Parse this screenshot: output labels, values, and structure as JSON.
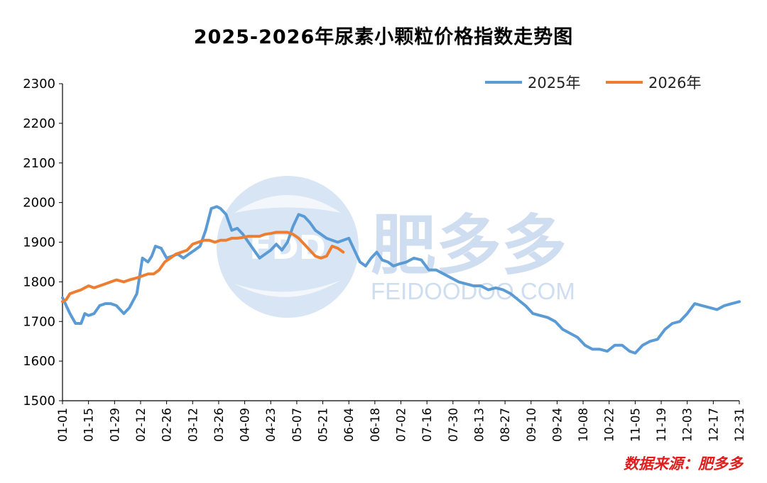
{
  "chart_data": {
    "type": "line",
    "title": "2025-2026年尿素小颗粒价格指数走势图",
    "xlabel": "",
    "ylabel": "",
    "ylim": [
      1500,
      2300
    ],
    "yticks": [
      1500,
      1600,
      1700,
      1800,
      1900,
      2000,
      2100,
      2200,
      2300
    ],
    "xticks": [
      "01-01",
      "01-15",
      "01-29",
      "02-12",
      "02-26",
      "03-12",
      "03-26",
      "04-09",
      "04-23",
      "05-07",
      "05-21",
      "06-04",
      "06-18",
      "07-02",
      "07-16",
      "07-30",
      "08-13",
      "08-27",
      "09-10",
      "09-24",
      "10-08",
      "10-22",
      "11-05",
      "11-19",
      "12-03",
      "12-17",
      "12-31"
    ],
    "grid": false,
    "legend_position": "top-right",
    "series": [
      {
        "name": "2025年",
        "color": "#5b9bd5",
        "x": [
          "01-01",
          "01-03",
          "01-05",
          "01-08",
          "01-11",
          "01-13",
          "01-15",
          "01-18",
          "01-21",
          "01-24",
          "01-27",
          "01-30",
          "02-03",
          "02-06",
          "02-10",
          "02-13",
          "02-16",
          "02-18",
          "02-20",
          "02-23",
          "02-26",
          "03-01",
          "03-04",
          "03-07",
          "03-10",
          "03-13",
          "03-16",
          "03-19",
          "03-22",
          "03-25",
          "03-27",
          "03-30",
          "04-02",
          "04-05",
          "04-08",
          "04-11",
          "04-14",
          "04-17",
          "04-20",
          "04-23",
          "04-26",
          "04-29",
          "05-02",
          "05-05",
          "05-08",
          "05-11",
          "05-14",
          "05-17",
          "05-20",
          "05-23",
          "05-26",
          "05-29",
          "06-01",
          "06-04",
          "06-07",
          "06-10",
          "06-13",
          "06-16",
          "06-19",
          "06-22",
          "06-25",
          "06-28",
          "07-01",
          "07-05",
          "07-09",
          "07-13",
          "07-17",
          "07-21",
          "07-25",
          "07-29",
          "08-02",
          "08-06",
          "08-10",
          "08-14",
          "08-18",
          "08-22",
          "08-26",
          "08-30",
          "09-03",
          "09-07",
          "09-11",
          "09-15",
          "09-19",
          "09-23",
          "09-27",
          "10-01",
          "10-05",
          "10-09",
          "10-13",
          "10-17",
          "10-21",
          "10-25",
          "10-29",
          "11-02",
          "11-05",
          "11-09",
          "11-13",
          "11-17",
          "11-21",
          "11-25",
          "11-29",
          "12-03",
          "12-07",
          "12-11",
          "12-15",
          "12-19",
          "12-23",
          "12-27",
          "12-31"
        ],
        "values": [
          1760,
          1740,
          1720,
          1695,
          1695,
          1720,
          1715,
          1720,
          1740,
          1745,
          1745,
          1740,
          1720,
          1735,
          1770,
          1860,
          1850,
          1865,
          1890,
          1885,
          1860,
          1865,
          1870,
          1860,
          1870,
          1880,
          1890,
          1930,
          1985,
          1990,
          1985,
          1970,
          1930,
          1935,
          1920,
          1900,
          1880,
          1860,
          1870,
          1880,
          1895,
          1880,
          1900,
          1940,
          1970,
          1965,
          1950,
          1930,
          1920,
          1910,
          1905,
          1900,
          1905,
          1910,
          1880,
          1850,
          1840,
          1860,
          1875,
          1855,
          1850,
          1840,
          1845,
          1850,
          1860,
          1855,
          1830,
          1830,
          1820,
          1810,
          1800,
          1795,
          1790,
          1790,
          1780,
          1785,
          1780,
          1770,
          1755,
          1740,
          1720,
          1715,
          1710,
          1700,
          1680,
          1670,
          1660,
          1640,
          1630,
          1630,
          1625,
          1640,
          1640,
          1625,
          1620,
          1640,
          1650,
          1655,
          1680,
          1695,
          1700,
          1720,
          1745,
          1740,
          1735,
          1730,
          1740,
          1745,
          1750
        ]
      },
      {
        "name": "2026年",
        "color": "#ed7d31",
        "x": [
          "01-01",
          "01-03",
          "01-05",
          "01-08",
          "01-11",
          "01-13",
          "01-15",
          "01-18",
          "01-21",
          "01-24",
          "01-27",
          "01-30",
          "02-03",
          "02-06",
          "02-10",
          "02-13",
          "02-16",
          "02-19",
          "02-22",
          "02-25",
          "02-28",
          "03-03",
          "03-06",
          "03-09",
          "03-12",
          "03-15",
          "03-18",
          "03-21",
          "03-24",
          "03-27",
          "03-30",
          "04-02",
          "04-05",
          "04-08",
          "04-11",
          "04-14",
          "04-17",
          "04-20",
          "04-23",
          "04-26",
          "04-29",
          "05-02",
          "05-05",
          "05-08",
          "05-11",
          "05-14",
          "05-17",
          "05-20",
          "05-23",
          "05-26",
          "05-29",
          "06-01"
        ],
        "values": [
          1750,
          1755,
          1770,
          1775,
          1780,
          1785,
          1790,
          1785,
          1790,
          1795,
          1800,
          1805,
          1800,
          1805,
          1810,
          1815,
          1820,
          1820,
          1830,
          1850,
          1860,
          1870,
          1875,
          1880,
          1895,
          1900,
          1905,
          1905,
          1900,
          1905,
          1905,
          1910,
          1910,
          1912,
          1915,
          1915,
          1915,
          1920,
          1922,
          1925,
          1925,
          1925,
          1920,
          1910,
          1895,
          1880,
          1865,
          1860,
          1865,
          1890,
          1885,
          1875
        ]
      }
    ]
  },
  "legend": {
    "items": [
      "2025年",
      "2026年"
    ]
  },
  "watermark": {
    "logo_text": "FDD",
    "brand": "肥多多",
    "domain": "FEIDOODOO.COM"
  },
  "source_note": "数据来源：肥多多"
}
